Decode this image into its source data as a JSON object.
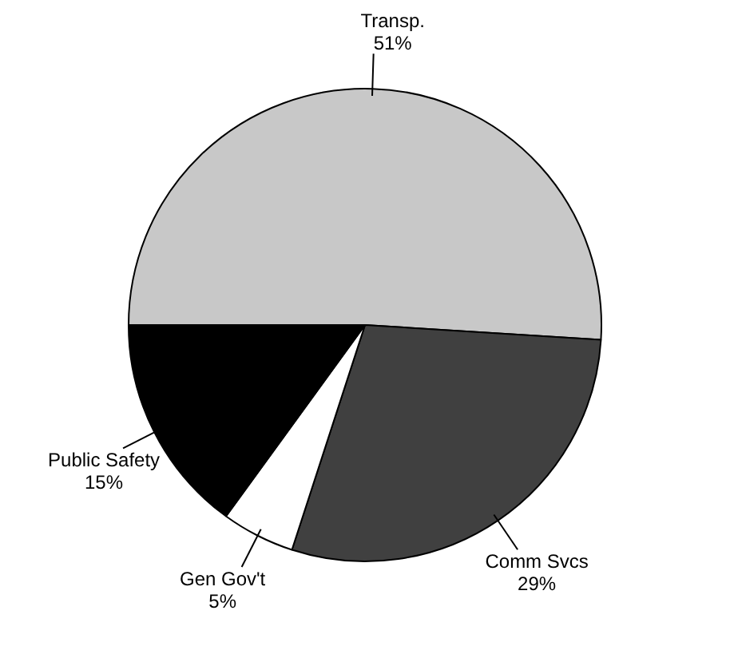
{
  "chart_data": {
    "type": "pie",
    "categories": [
      "Transp.",
      "Comm Svcs",
      "Gen Gov't",
      "Public Safety"
    ],
    "values": [
      51,
      29,
      5,
      15
    ],
    "colors": [
      "#c8c8c8",
      "#404040",
      "#ffffff",
      "#000000"
    ],
    "value_labels": [
      "51%",
      "29%",
      "5%",
      "15%"
    ],
    "legend": false
  }
}
